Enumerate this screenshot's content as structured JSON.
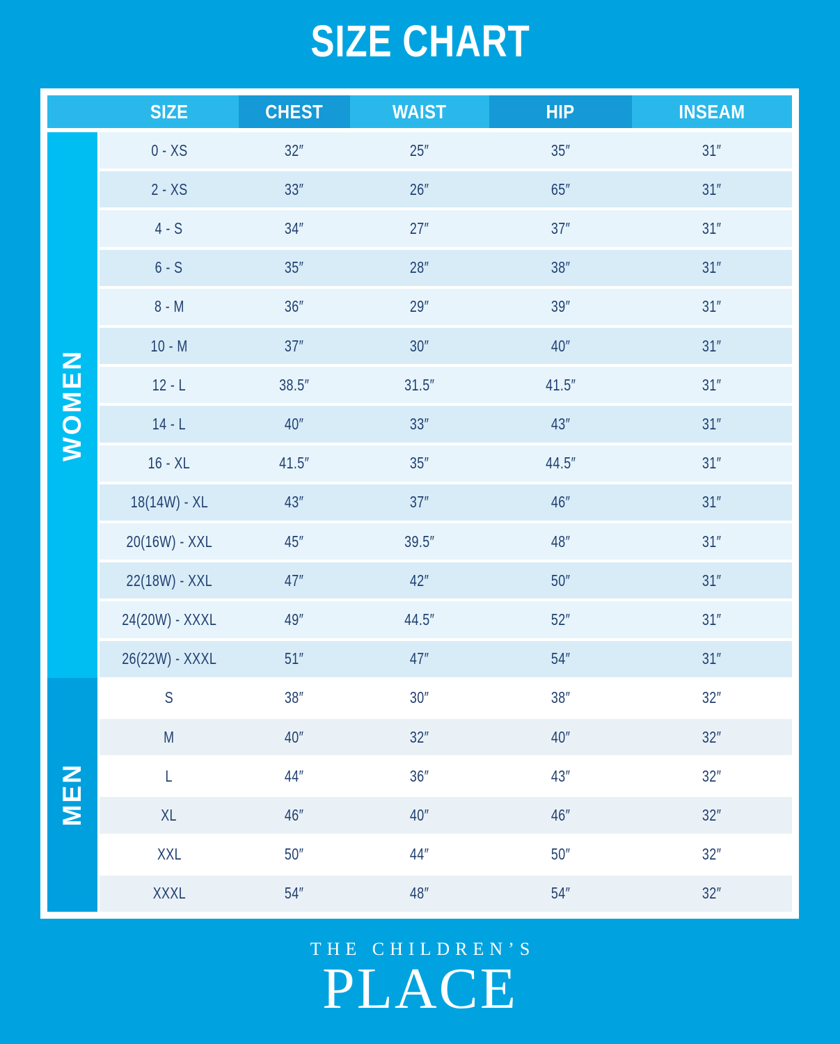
{
  "title": "SIZE CHART",
  "logo": {
    "line1": "THE CHILDREN’S",
    "line2": "PLACE"
  },
  "colors": {
    "background": "#00A3E0",
    "header_light": "#2AB8EB",
    "header_dark": "#1599D7",
    "sidebar_women": "#00BEF2",
    "sidebar_men": "#00A0DF",
    "women_row_light": "#E7F4FB",
    "women_row_dark": "#D8ECF8",
    "men_row_light": "#FFFFFF",
    "men_row_dark": "#EAF1F6",
    "text_navy": "#1F3E6F",
    "frame_white": "#FFFFFF"
  },
  "chart_data": {
    "type": "table",
    "title": "SIZE CHART",
    "columns": [
      "SIZE",
      "CHEST",
      "WAIST",
      "HIP",
      "INSEAM"
    ],
    "row_groups": [
      {
        "group": "WOMEN",
        "rows": [
          [
            "0 - XS",
            "32″",
            "25″",
            "35″",
            "31″"
          ],
          [
            "2 - XS",
            "33″",
            "26″",
            "65″",
            "31″"
          ],
          [
            "4 - S",
            "34″",
            "27″",
            "37″",
            "31″"
          ],
          [
            "6 - S",
            "35″",
            "28″",
            "38″",
            "31″"
          ],
          [
            "8 - M",
            "36″",
            "29″",
            "39″",
            "31″"
          ],
          [
            "10 - M",
            "37″",
            "30″",
            "40″",
            "31″"
          ],
          [
            "12 - L",
            "38.5″",
            "31.5″",
            "41.5″",
            "31″"
          ],
          [
            "14 - L",
            "40″",
            "33″",
            "43″",
            "31″"
          ],
          [
            "16 - XL",
            "41.5″",
            "35″",
            "44.5″",
            "31″"
          ],
          [
            "18(14W) - XL",
            "43″",
            "37″",
            "46″",
            "31″"
          ],
          [
            "20(16W) - XXL",
            "45″",
            "39.5″",
            "48″",
            "31″"
          ],
          [
            "22(18W) - XXL",
            "47″",
            "42″",
            "50″",
            "31″"
          ],
          [
            "24(20W) - XXXL",
            "49″",
            "44.5″",
            "52″",
            "31″"
          ],
          [
            "26(22W) - XXXL",
            "51″",
            "47″",
            "54″",
            "31″"
          ]
        ]
      },
      {
        "group": "MEN",
        "rows": [
          [
            "S",
            "38″",
            "30″",
            "38″",
            "32″"
          ],
          [
            "M",
            "40″",
            "32″",
            "40″",
            "32″"
          ],
          [
            "L",
            "44″",
            "36″",
            "43″",
            "32″"
          ],
          [
            "XL",
            "46″",
            "40″",
            "46″",
            "32″"
          ],
          [
            "XXL",
            "50″",
            "44″",
            "50″",
            "32″"
          ],
          [
            "XXXL",
            "54″",
            "48″",
            "54″",
            "32″"
          ]
        ]
      }
    ]
  }
}
